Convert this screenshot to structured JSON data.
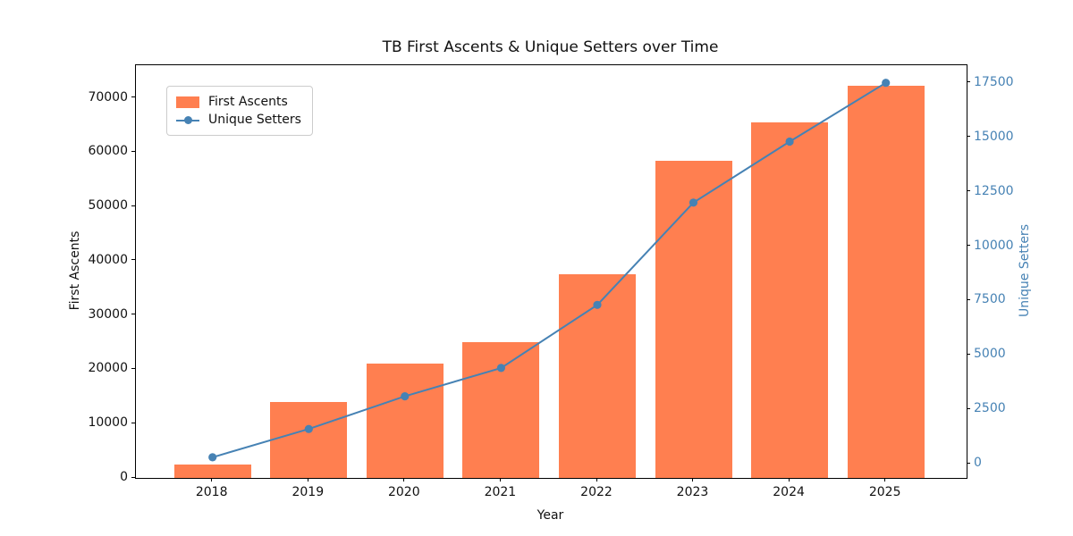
{
  "chart_data": {
    "type": "bar",
    "title": "TB First Ascents & Unique Setters over Time",
    "xlabel": "Year",
    "ylabel_left": "First Ascents",
    "ylabel_right": "Unique Setters",
    "categories": [
      "2018",
      "2019",
      "2020",
      "2021",
      "2022",
      "2023",
      "2024",
      "2025"
    ],
    "series": [
      {
        "name": "First Ascents",
        "type": "bar",
        "axis": "left",
        "color": "#FF7F50",
        "values": [
          2500,
          14000,
          21000,
          25000,
          37500,
          58400,
          65500,
          72300
        ]
      },
      {
        "name": "Unique Setters",
        "type": "line",
        "axis": "right",
        "color": "#4682B4",
        "marker": "circle",
        "values": [
          300,
          1600,
          3100,
          4400,
          7300,
          12000,
          14800,
          17500
        ]
      }
    ],
    "left_axis": {
      "ticks": [
        0,
        10000,
        20000,
        30000,
        40000,
        50000,
        60000,
        70000
      ],
      "min": 0,
      "max": 76000
    },
    "right_axis": {
      "ticks": [
        0,
        2500,
        5000,
        7500,
        10000,
        12500,
        15000,
        17500
      ],
      "min": -650,
      "max": 18310,
      "color": "#4682B4"
    },
    "legend": {
      "position": "upper left",
      "entries": [
        "First Ascents",
        "Unique Setters"
      ]
    },
    "grid": false,
    "colors": {
      "bar": "#FF7F50",
      "line": "#4682B4",
      "spine": "#000000",
      "background": "#FFFFFF"
    }
  }
}
